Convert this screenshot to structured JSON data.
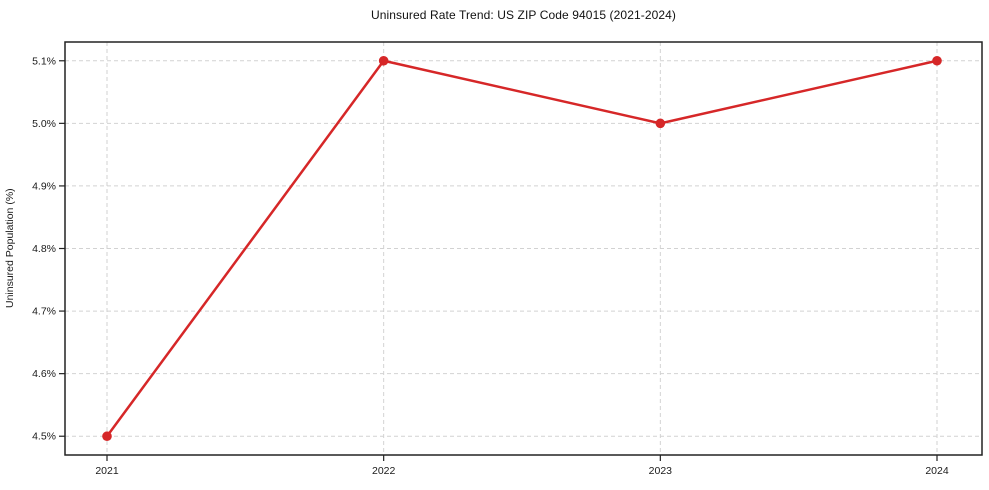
{
  "chart_data": {
    "type": "line",
    "title": "Uninsured Rate Trend: US ZIP Code 94015 (2021-2024)",
    "xlabel": "",
    "ylabel": "Uninsured Population (%)",
    "categories": [
      "2021",
      "2022",
      "2023",
      "2024"
    ],
    "series": [
      {
        "values": [
          4.5,
          5.1,
          5.0,
          5.1
        ],
        "color": "#d62728",
        "marker": "circle",
        "line_width": 2.5,
        "marker_radius": 4.8
      }
    ],
    "yticks": [
      4.5,
      4.6,
      4.7,
      4.8,
      4.9,
      5.0,
      5.1
    ],
    "ytick_suffix": "%",
    "ytick_decimals": 1,
    "ylim": [
      4.47,
      5.13
    ],
    "grid": true,
    "grid_style": "dashed",
    "legend": false,
    "colors": {
      "line": "#d62728",
      "grid": "#d2d2d2",
      "axis": "#222222",
      "tick_text": "#1a1a1a",
      "background": "#ffffff"
    }
  }
}
